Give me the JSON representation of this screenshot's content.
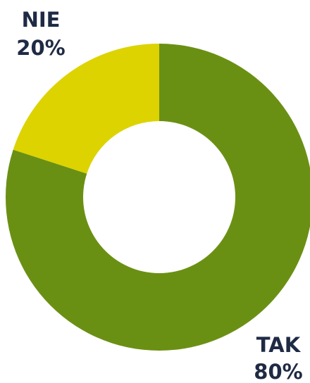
{
  "chart_data": {
    "type": "donut",
    "categories": [
      "TAK",
      "NIE"
    ],
    "values": [
      80,
      20
    ],
    "value_labels": [
      "80%",
      "20%"
    ],
    "colors": [
      "#6a9013",
      "#dcd300"
    ]
  }
}
